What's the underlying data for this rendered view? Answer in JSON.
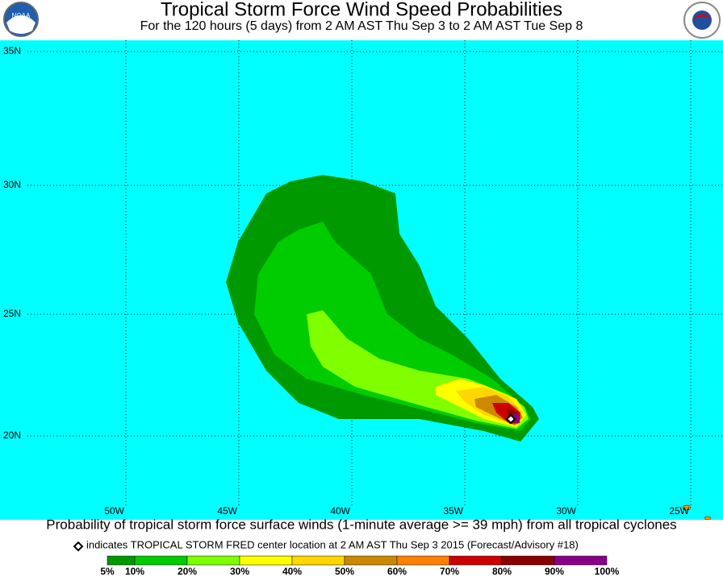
{
  "header": {
    "title": "Tropical Storm Force Wind Speed Probabilities",
    "subtitle": "For the 120 hours (5 days) from 2 AM AST Thu Sep 3 to 2 AM AST Tue Sep 8"
  },
  "map": {
    "lat_labels": [
      "35N",
      "30N",
      "25N",
      "20N"
    ],
    "lon_labels": [
      "50W",
      "45W",
      "40W",
      "35W",
      "30W",
      "25W"
    ]
  },
  "footer": {
    "description": "Probability of tropical storm force surface winds (1-minute average >= 39 mph) from all tropical cyclones",
    "note": "indicates TROPICAL STORM FRED center location at 2 AM AST Thu Sep 3 2015 (Forecast/Advisory #18)"
  },
  "legend": {
    "labels": [
      "5%",
      "10%",
      "20%",
      "30%",
      "40%",
      "50%",
      "60%",
      "70%",
      "80%",
      "90%",
      "100%"
    ],
    "colors": [
      "#009900",
      "#00cc00",
      "#80ff00",
      "#ffff00",
      "#ffd700",
      "#cc8800",
      "#ff8000",
      "#cc0000",
      "#880000",
      "#880088"
    ]
  }
}
